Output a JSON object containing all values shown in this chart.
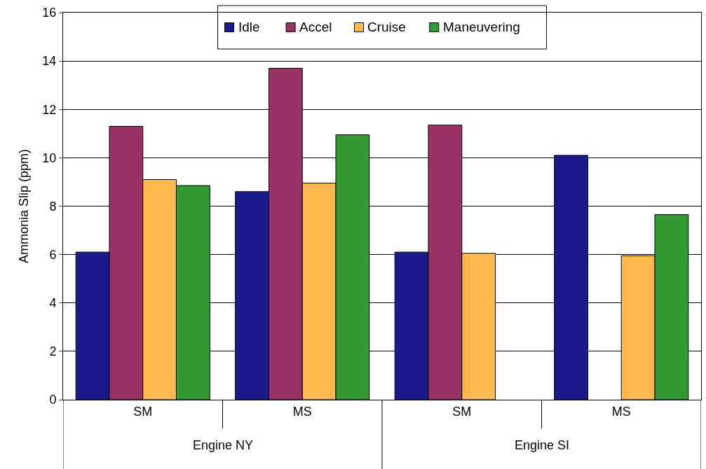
{
  "chart_data": {
    "type": "bar",
    "ylabel": "Ammonia Slip (ppm)",
    "categories": [
      "SM",
      "MS",
      "SM",
      "MS"
    ],
    "annotations": [
      "Engine NY",
      "Engine SI"
    ],
    "series": [
      {
        "name": "Idle",
        "color": "#1a1a8c",
        "values": [
          6.1,
          8.6,
          6.1,
          10.1
        ]
      },
      {
        "name": "Accel",
        "color": "#993366",
        "values": [
          11.3,
          13.7,
          11.35,
          null
        ]
      },
      {
        "name": "Cruise",
        "color": "#ffb84d",
        "values": [
          9.1,
          8.95,
          6.05,
          5.95
        ]
      },
      {
        "name": "Maneuvering",
        "color": "#339933",
        "values": [
          8.85,
          10.95,
          null,
          7.65
        ]
      }
    ],
    "ylim": [
      0,
      16
    ],
    "yticks": [
      0,
      2,
      4,
      6,
      8,
      10,
      12,
      14,
      16
    ],
    "grid": "y",
    "legend": "top"
  }
}
